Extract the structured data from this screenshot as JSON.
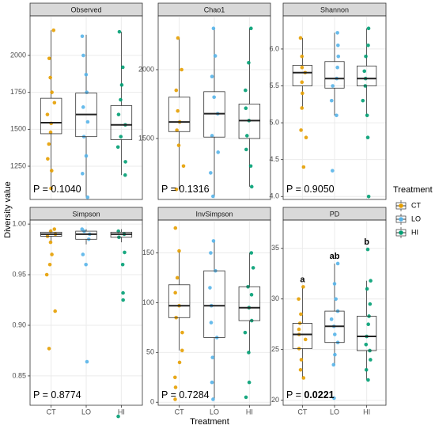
{
  "y_axis_title": "Diversity value",
  "x_axis_title": "Treatment",
  "categories": [
    "CT",
    "LO",
    "HI"
  ],
  "colors": [
    "#E69F00",
    "#56B4E9",
    "#009E73"
  ],
  "legend": {
    "title": "Treatment",
    "position": "right"
  },
  "chart_data": [
    {
      "type": "box",
      "title": "Observed",
      "ylim": [
        1025,
        2268
      ],
      "yticks": [
        1250,
        1500,
        1750,
        2000
      ],
      "groups": [
        {
          "box": {
            "q1": 1470,
            "median": 1545,
            "q3": 1710,
            "whisker_low": 1100,
            "whisker_high": 2170
          },
          "points": [
            1100,
            1220,
            1300,
            1400,
            1480,
            1540,
            1600,
            1680,
            1750,
            1850,
            1980,
            2170
          ]
        },
        {
          "box": {
            "q1": 1450,
            "median": 1600,
            "q3": 1745,
            "whisker_low": 1040,
            "whisker_high": 2140
          },
          "points": [
            1040,
            1200,
            1320,
            1450,
            1550,
            1650,
            1750,
            1870,
            2000,
            2130
          ]
        },
        {
          "box": {
            "q1": 1430,
            "median": 1530,
            "q3": 1660,
            "whisker_low": 1190,
            "whisker_high": 2160
          },
          "points": [
            1190,
            1280,
            1380,
            1450,
            1530,
            1600,
            1700,
            1800,
            1920,
            2160
          ]
        }
      ],
      "annotation": {
        "prefix": "P = ",
        "value": "0.1040",
        "bold": false
      }
    },
    {
      "type": "box",
      "title": "Chao1",
      "ylim": [
        1057,
        2391
      ],
      "yticks": [
        1500,
        2000
      ],
      "groups": [
        {
          "box": {
            "q1": 1550,
            "median": 1620,
            "q3": 1800,
            "whisker_low": 1130,
            "whisker_high": 2230
          },
          "points": [
            1130,
            1300,
            1450,
            1560,
            1620,
            1700,
            1850,
            2000,
            2230
          ]
        },
        {
          "box": {
            "q1": 1510,
            "median": 1680,
            "q3": 1840,
            "whisker_low": 1080,
            "whisker_high": 2300
          },
          "points": [
            1080,
            1250,
            1400,
            1520,
            1680,
            1800,
            1950,
            2100,
            2300
          ]
        },
        {
          "box": {
            "q1": 1500,
            "median": 1630,
            "q3": 1750,
            "whisker_low": 1150,
            "whisker_high": 2300
          },
          "points": [
            1150,
            1300,
            1420,
            1520,
            1630,
            1720,
            1850,
            2050,
            2300
          ]
        }
      ],
      "annotation": {
        "prefix": "P = ",
        "value": "0.1316",
        "bold": false
      }
    },
    {
      "type": "box",
      "title": "Shannon",
      "ylim": [
        3.96,
        6.45
      ],
      "yticks": [
        {
          "value": 4,
          "label": "4.0"
        },
        4.5,
        {
          "value": 5,
          "label": "5.0"
        },
        5.5,
        {
          "value": 6,
          "label": "6.0"
        }
      ],
      "groups": [
        {
          "box": {
            "q1": 5.5,
            "median": 5.68,
            "q3": 5.78,
            "whisker_low": 5.2,
            "whisker_high": 6.15
          },
          "points": [
            4.4,
            4.8,
            4.9,
            5.2,
            5.4,
            5.55,
            5.68,
            5.75,
            5.9,
            6.15
          ]
        },
        {
          "box": {
            "q1": 5.47,
            "median": 5.6,
            "q3": 5.83,
            "whisker_low": 5.1,
            "whisker_high": 6.22
          },
          "points": [
            4.35,
            5.1,
            5.3,
            5.5,
            5.6,
            5.75,
            5.9,
            6.05,
            6.22
          ]
        },
        {
          "box": {
            "q1": 5.5,
            "median": 5.6,
            "q3": 5.77,
            "whisker_low": 5.1,
            "whisker_high": 6.28
          },
          "points": [
            4.0,
            4.8,
            5.1,
            5.3,
            5.5,
            5.6,
            5.7,
            5.9,
            6.05,
            6.28
          ]
        }
      ],
      "annotation": {
        "prefix": "P = ",
        "value": "0.9050",
        "bold": false
      }
    },
    {
      "type": "box",
      "title": "Simpson",
      "ylim": [
        0.821,
        1.004
      ],
      "yticks": [
        0.85,
        {
          "value": 0.9,
          "label": "0.90"
        },
        0.95,
        {
          "value": 1,
          "label": "1.00"
        }
      ],
      "groups": [
        {
          "box": {
            "q1": 0.988,
            "median": 0.99,
            "q3": 0.992,
            "whisker_low": 0.982,
            "whisker_high": 0.995
          },
          "points": [
            0.877,
            0.914,
            0.95,
            0.96,
            0.97,
            0.982,
            0.988,
            0.99,
            0.993,
            0.995
          ]
        },
        {
          "box": {
            "q1": 0.985,
            "median": 0.99,
            "q3": 0.993,
            "whisker_low": 0.98,
            "whisker_high": 0.995
          },
          "points": [
            0.864,
            0.96,
            0.97,
            0.985,
            0.99,
            0.993,
            0.995
          ]
        },
        {
          "box": {
            "q1": 0.987,
            "median": 0.99,
            "q3": 0.992,
            "whisker_low": 0.982,
            "whisker_high": 0.995
          },
          "points": [
            0.81,
            0.925,
            0.932,
            0.96,
            0.972,
            0.987,
            0.99,
            0.993
          ]
        }
      ],
      "annotation": {
        "prefix": "P = ",
        "value": "0.8774",
        "bold": false
      }
    },
    {
      "type": "box",
      "title": "InvSimpson",
      "ylim": [
        -3,
        183
      ],
      "yticks": [
        0,
        50,
        100,
        150
      ],
      "groups": [
        {
          "box": {
            "q1": 85,
            "median": 97,
            "q3": 118,
            "whisker_low": 52,
            "whisker_high": 152
          },
          "points": [
            3,
            15,
            25,
            40,
            52,
            70,
            85,
            97,
            110,
            125,
            152,
            175
          ]
        },
        {
          "box": {
            "q1": 65,
            "median": 97,
            "q3": 132,
            "whisker_low": 3,
            "whisker_high": 162
          },
          "points": [
            3,
            20,
            45,
            65,
            80,
            97,
            115,
            132,
            150,
            162
          ]
        },
        {
          "box": {
            "q1": 82,
            "median": 95,
            "q3": 116,
            "whisker_low": 50,
            "whisker_high": 150
          },
          "points": [
            5,
            20,
            50,
            70,
            82,
            95,
            108,
            116,
            135,
            150
          ]
        }
      ],
      "annotation": {
        "prefix": "P = ",
        "value": "0.7284",
        "bold": false
      }
    },
    {
      "type": "box",
      "title": "PD",
      "ylim": [
        19.5,
        37.8
      ],
      "yticks": [
        20,
        25,
        30,
        35
      ],
      "groups": [
        {
          "box": {
            "q1": 25.1,
            "median": 26.5,
            "q3": 27.6,
            "whisker_low": 22.2,
            "whisker_high": 31.2
          },
          "points": [
            22.2,
            23,
            24,
            25.1,
            26,
            26.5,
            27,
            27.6,
            28.5,
            30,
            31.2
          ],
          "letter": "a"
        },
        {
          "box": {
            "q1": 25.7,
            "median": 27.3,
            "q3": 28.8,
            "whisker_low": 23.5,
            "whisker_high": 33.5
          },
          "points": [
            20.2,
            23.5,
            24.5,
            25.7,
            26.5,
            27.3,
            28,
            28.8,
            30,
            31.5,
            33.5
          ],
          "letter": "ab"
        },
        {
          "box": {
            "q1": 24.9,
            "median": 26.3,
            "q3": 28.3,
            "whisker_low": 22,
            "whisker_high": 31.8
          },
          "points": [
            22,
            23,
            24,
            24.9,
            25.5,
            26.3,
            27.5,
            28.3,
            29.5,
            31,
            31.8,
            34.9
          ],
          "letter": "b"
        }
      ],
      "annotation": {
        "prefix": "P = ",
        "value": "0.0221",
        "bold": true
      }
    }
  ]
}
